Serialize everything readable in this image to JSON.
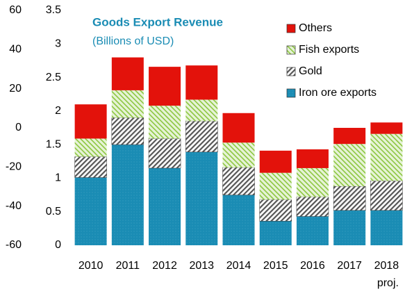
{
  "chart_data": {
    "type": "stacked_bar",
    "title": "Goods Export Revenue",
    "subtitle": "(Billions of USD)",
    "annotation": "proj.",
    "categories": [
      "2010",
      "2011",
      "2012",
      "2013",
      "2014",
      "2015",
      "2016",
      "2017",
      "2018"
    ],
    "series": [
      {
        "name": "Iron ore exports",
        "color": "#1a8cb4",
        "values": [
          1.01,
          1.5,
          1.15,
          1.39,
          0.75,
          0.36,
          0.43,
          0.52,
          0.52
        ]
      },
      {
        "name": "Gold",
        "color": "#7f7f7f",
        "values": [
          0.31,
          0.4,
          0.44,
          0.46,
          0.41,
          0.32,
          0.29,
          0.36,
          0.44
        ]
      },
      {
        "name": "Fish exports",
        "color": "#8cc63f",
        "values": [
          0.27,
          0.41,
          0.49,
          0.32,
          0.37,
          0.4,
          0.43,
          0.63,
          0.7
        ]
      },
      {
        "name": "Others",
        "color": "#e3120b",
        "values": [
          0.51,
          0.49,
          0.58,
          0.51,
          0.44,
          0.33,
          0.28,
          0.24,
          0.17
        ]
      }
    ],
    "ylim": [
      0,
      3.5
    ],
    "yticks": [
      0,
      0.5,
      1,
      1.5,
      2,
      2.5,
      3,
      3.5
    ],
    "y2lim": [
      -60,
      60
    ],
    "y2ticks": [
      -60,
      -40,
      -20,
      0,
      20,
      40,
      60
    ],
    "legend": "top-right"
  }
}
